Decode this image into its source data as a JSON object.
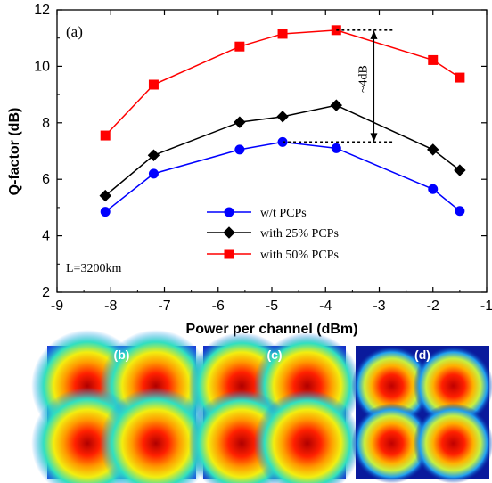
{
  "chart_data": {
    "type": "line",
    "panel_label": "(a)",
    "xlabel": "Power per channel (dBm)",
    "ylabel": "Q-factor (dB)",
    "xlim": [
      -9,
      -1
    ],
    "ylim": [
      2,
      12
    ],
    "x_ticks": [
      -9,
      -8,
      -7,
      -6,
      -5,
      -4,
      -3,
      -2,
      -1
    ],
    "y_ticks": [
      2,
      4,
      6,
      8,
      10,
      12
    ],
    "legend_position": "center-right",
    "series": [
      {
        "name": "w/t PCPs",
        "color": "#0000ff",
        "marker": "circle",
        "x": [
          -8.1,
          -7.2,
          -5.6,
          -4.8,
          -3.8,
          -2.0,
          -1.5
        ],
        "y": [
          4.85,
          6.2,
          7.05,
          7.32,
          7.1,
          5.65,
          4.88
        ]
      },
      {
        "name": "with 25% PCPs",
        "color": "#000000",
        "marker": "diamond",
        "x": [
          -8.1,
          -7.2,
          -5.6,
          -4.8,
          -3.8,
          -2.0,
          -1.5
        ],
        "y": [
          5.42,
          6.85,
          8.02,
          8.22,
          8.62,
          7.05,
          6.32
        ]
      },
      {
        "name": "with 50% PCPs",
        "color": "#ff0000",
        "marker": "square",
        "x": [
          -8.1,
          -7.2,
          -5.6,
          -4.8,
          -3.8,
          -2.0,
          -1.5
        ],
        "y": [
          7.55,
          9.35,
          10.7,
          11.15,
          11.28,
          10.22,
          9.6
        ]
      }
    ],
    "annotations": {
      "distance_label": "L=3200km",
      "gain_label": "~4dB",
      "gain_x": -3.1,
      "gain_top": 11.28,
      "gain_bottom": 7.32
    }
  },
  "constellations": [
    {
      "label": "(b)",
      "spread": "wide"
    },
    {
      "label": "(c)",
      "spread": "medium"
    },
    {
      "label": "(d)",
      "spread": "tight"
    }
  ]
}
